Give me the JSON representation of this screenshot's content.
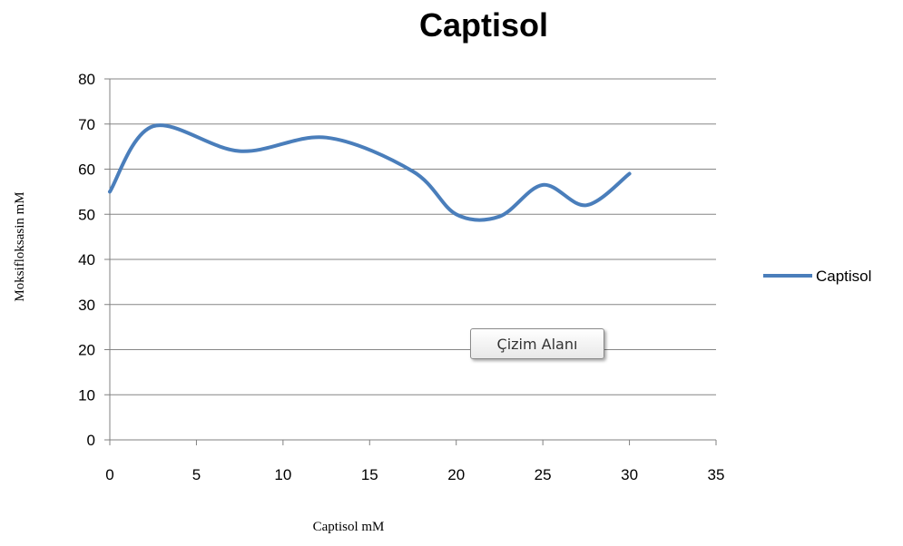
{
  "chart_data": {
    "type": "line",
    "title": "Captisol",
    "xlabel": "Captisol mM",
    "ylabel": "Moksifloksasin mM",
    "xlim": [
      0,
      35
    ],
    "ylim": [
      0,
      80
    ],
    "x_ticks": [
      0,
      5,
      10,
      15,
      20,
      25,
      30,
      35
    ],
    "y_ticks": [
      0,
      10,
      20,
      30,
      40,
      50,
      60,
      70,
      80
    ],
    "grid": "horizontal",
    "legend_position": "right",
    "smooth": true,
    "series": [
      {
        "name": "Captisol",
        "color": "#4a7ebb",
        "x": [
          0,
          2.5,
          7.5,
          12.5,
          17.5,
          20,
          22.5,
          25,
          27.5,
          30
        ],
        "y": [
          55,
          69.5,
          64,
          67,
          59.5,
          50,
          49.5,
          56.5,
          52,
          59
        ]
      }
    ]
  },
  "tooltip": {
    "text": "Çizim Alanı"
  }
}
